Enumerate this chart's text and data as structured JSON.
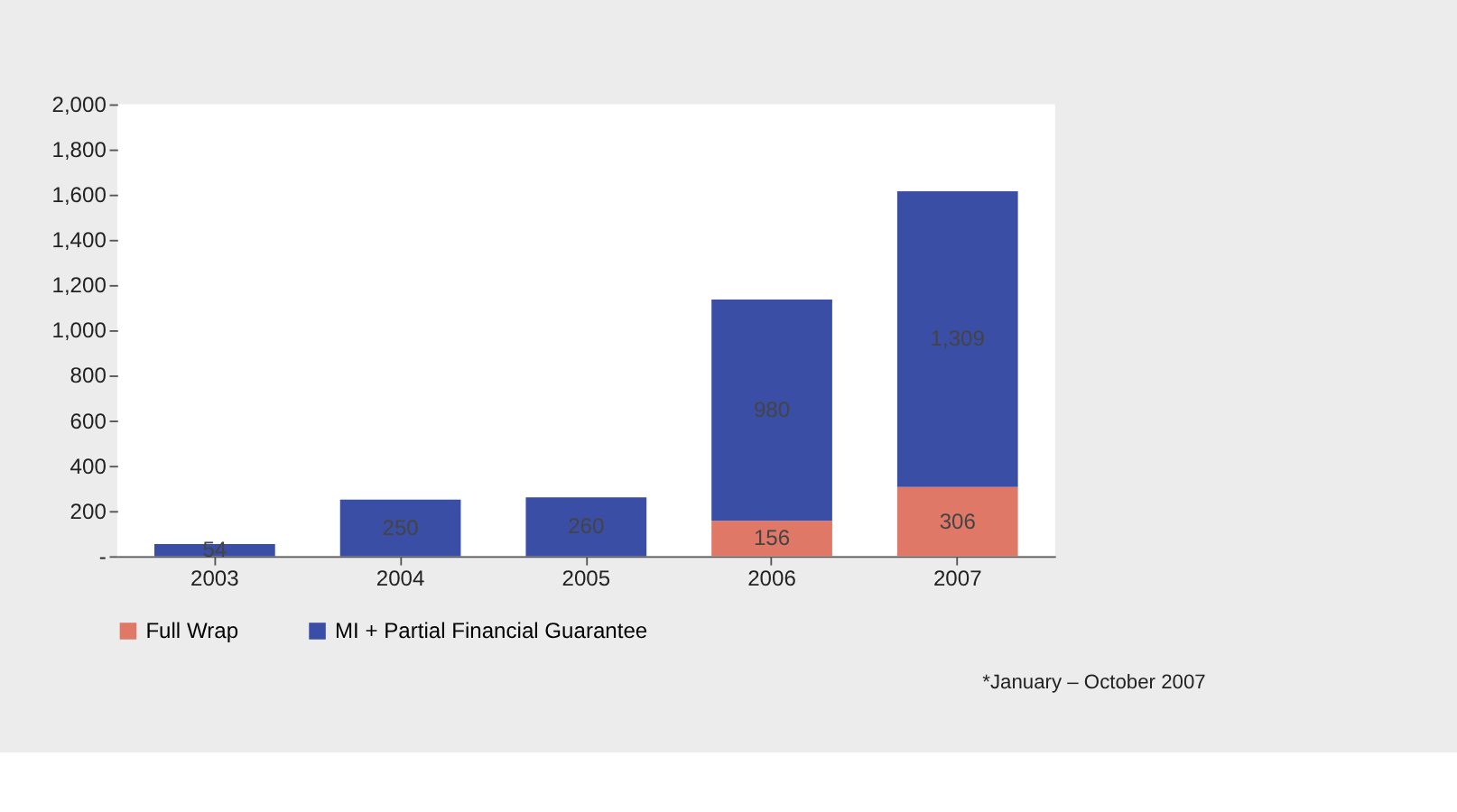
{
  "chart_data": {
    "type": "bar",
    "stacked": true,
    "categories": [
      "2003",
      "2004",
      "2005",
      "2006",
      "2007"
    ],
    "series": [
      {
        "name": "Full Wrap",
        "color": "#e07868",
        "values": [
          null,
          null,
          null,
          156,
          306
        ],
        "value_labels": [
          null,
          null,
          null,
          "156",
          "306"
        ]
      },
      {
        "name": "MI + Partial Financial Guarantee",
        "color": "#3b4ea6",
        "values": [
          54,
          250,
          260,
          980,
          1309
        ],
        "value_labels": [
          "54",
          "250",
          "260",
          "980",
          "1,309"
        ]
      }
    ],
    "ylim": [
      0,
      2000
    ],
    "yticks": [
      {
        "value": 0,
        "label": "-"
      },
      {
        "value": 200,
        "label": "200"
      },
      {
        "value": 400,
        "label": "400"
      },
      {
        "value": 600,
        "label": "600"
      },
      {
        "value": 800,
        "label": "800"
      },
      {
        "value": 1000,
        "label": "1,000"
      },
      {
        "value": 1200,
        "label": "1,200"
      },
      {
        "value": 1400,
        "label": "1,400"
      },
      {
        "value": 1600,
        "label": "1,600"
      },
      {
        "value": 1800,
        "label": "1,800"
      },
      {
        "value": 2000,
        "label": "2,000"
      }
    ],
    "grid": false,
    "legend": "bottom",
    "annotations": [
      "*January – October 2007"
    ]
  }
}
